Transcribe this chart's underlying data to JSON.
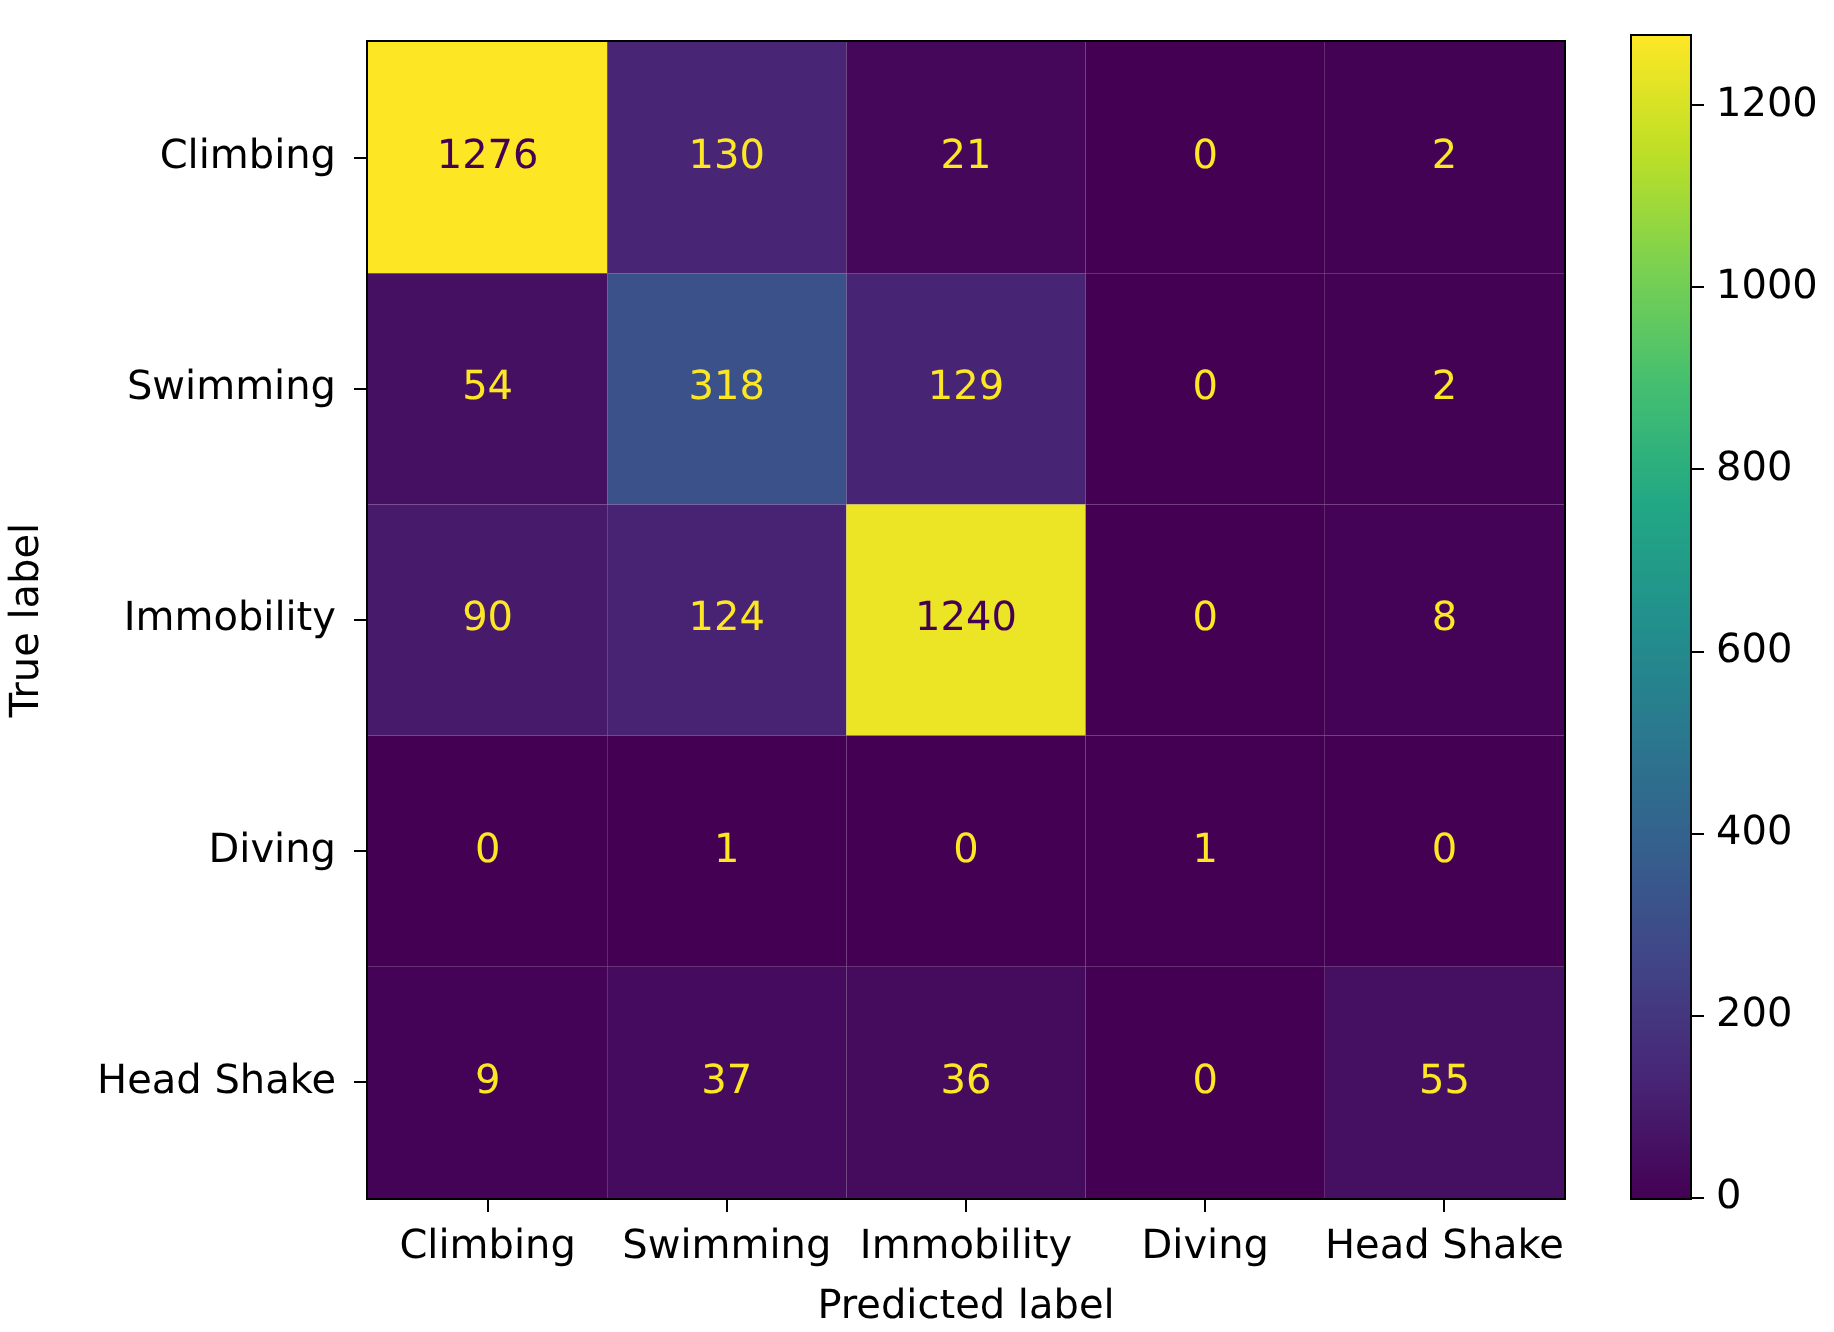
{
  "chart_data": {
    "type": "heatmap",
    "xlabel": "Predicted label",
    "ylabel": "True label",
    "categories": [
      "Climbing",
      "Swimming",
      "Immobility",
      "Diving",
      "Head Shake"
    ],
    "y_categories": [
      "Climbing",
      "Swimming",
      "Immobility",
      "Diving",
      "Head Shake"
    ],
    "cells": [
      [
        1276,
        130,
        21,
        0,
        2
      ],
      [
        54,
        318,
        129,
        0,
        2
      ],
      [
        90,
        124,
        1240,
        0,
        8
      ],
      [
        0,
        1,
        0,
        1,
        0
      ],
      [
        9,
        37,
        36,
        0,
        55
      ]
    ],
    "clim": [
      0,
      1276
    ],
    "cticks": [
      0,
      200,
      400,
      600,
      800,
      1000,
      1200
    ],
    "data_labels": true
  }
}
